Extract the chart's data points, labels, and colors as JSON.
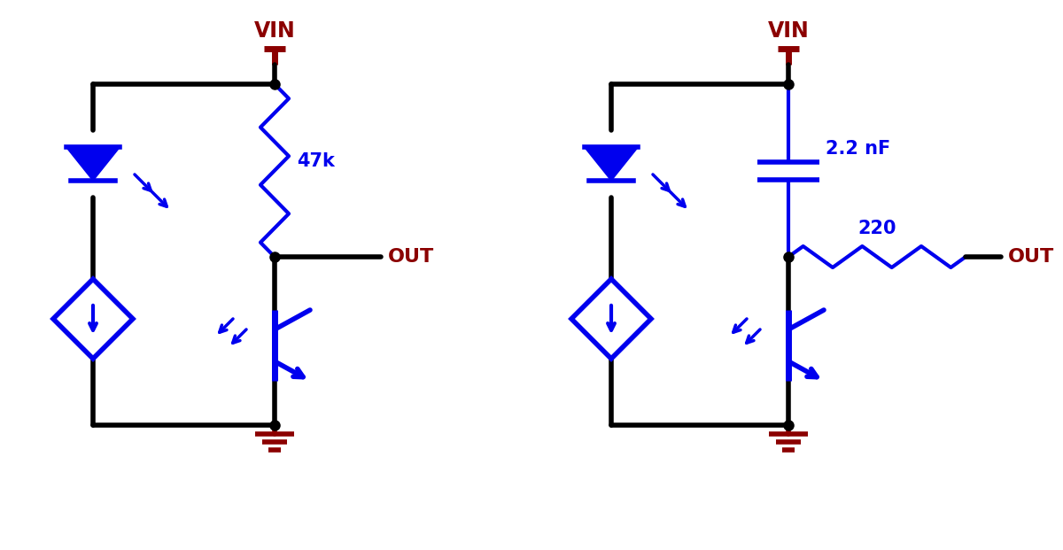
{
  "bg_color": "#ffffff",
  "blue": "#0000EE",
  "dark_red": "#8B0000",
  "black": "#000000",
  "line_width": 3.0,
  "figsize": [
    12.0,
    6.21
  ],
  "dpi": 100,
  "circuit1": {
    "vin_label": "VIN",
    "out_label": "OUT",
    "resistor_label": "47k"
  },
  "circuit2": {
    "vin_label": "VIN",
    "out_label": "OUT",
    "cap_label": "2.2 nF",
    "resistor_label": "220"
  }
}
